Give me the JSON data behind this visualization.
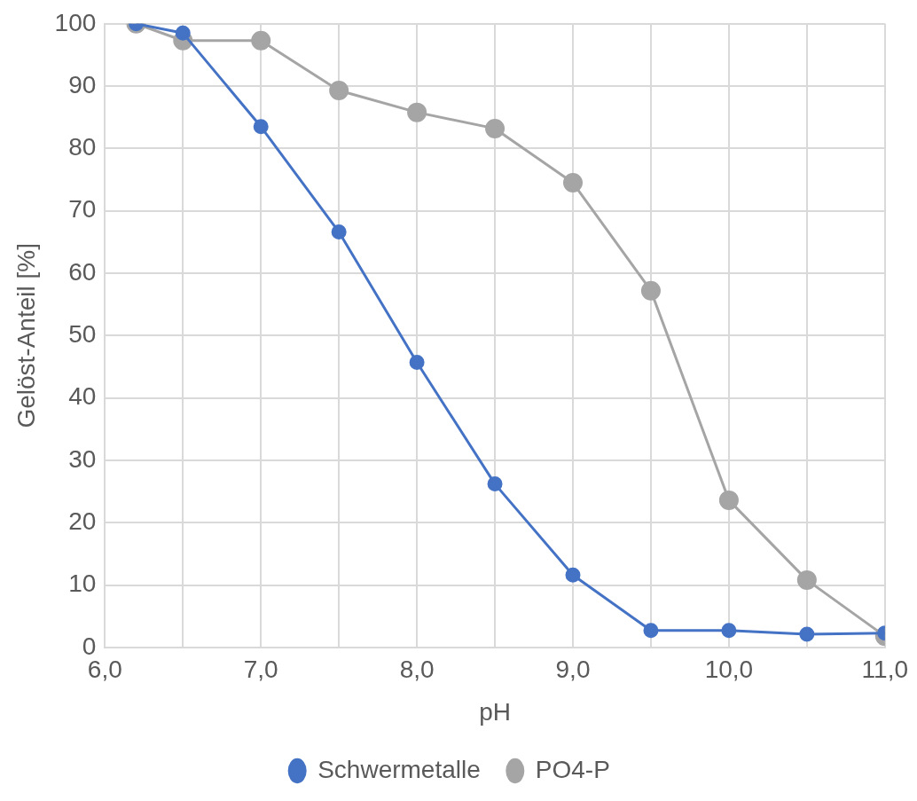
{
  "chart_data": {
    "type": "line",
    "xlabel": "pH",
    "ylabel": "Gelöst-Anteil [%]",
    "xlim": [
      6,
      11
    ],
    "xticks": [
      {
        "value": 6,
        "label": "6,0"
      },
      {
        "value": 6.5,
        "label": null
      },
      {
        "value": 7,
        "label": "7,0"
      },
      {
        "value": 7.5,
        "label": null
      },
      {
        "value": 8,
        "label": "8,0"
      },
      {
        "value": 8.5,
        "label": null
      },
      {
        "value": 9,
        "label": "9,0"
      },
      {
        "value": 9.5,
        "label": null
      },
      {
        "value": 10,
        "label": "10,0"
      },
      {
        "value": 10.5,
        "label": null
      },
      {
        "value": 11,
        "label": "11,0"
      }
    ],
    "ylim": [
      0,
      100
    ],
    "yticks": [
      0,
      10,
      20,
      30,
      40,
      50,
      60,
      70,
      80,
      90,
      100
    ],
    "x": [
      6.2,
      6.5,
      7,
      7.5,
      8,
      8.5,
      9,
      9.5,
      10,
      10.5,
      11
    ],
    "series": [
      {
        "name": "Schwermetalle",
        "color": "#4472c4",
        "values": [
          100,
          98.5,
          83.5,
          66.6,
          45.7,
          26.2,
          11.6,
          2.7,
          2.7,
          2.1,
          2.3
        ]
      },
      {
        "name": "PO4-P",
        "color": "#a5a5a5",
        "values": [
          100,
          97.3,
          97.3,
          89.3,
          85.8,
          83.2,
          74.5,
          57.2,
          23.6,
          10.8,
          1.8
        ]
      }
    ],
    "grid": true,
    "legend": "bottom",
    "marker": "circle",
    "line_style": "solid"
  }
}
